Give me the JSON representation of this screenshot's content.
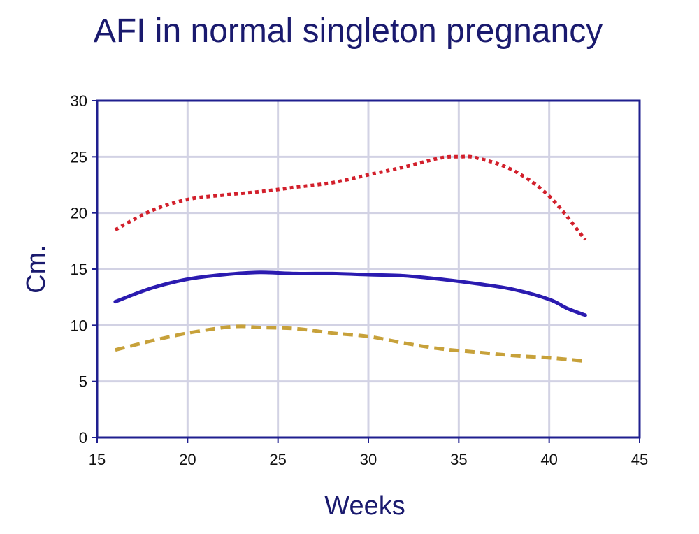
{
  "colors": {
    "title": "#1a1a6e",
    "axis_label": "#1a1a6e",
    "frame": "#1f1f8f",
    "grid": "#d2d2e4",
    "tick": "#111111",
    "upper": "#d21f2b",
    "median": "#2b1bb0",
    "lower": "#c7a13a"
  },
  "chart_data": {
    "type": "line",
    "title": "AFI in normal singleton pregnancy",
    "xlabel": "Weeks",
    "ylabel": "Cm.",
    "xlim": [
      15,
      45
    ],
    "ylim": [
      0,
      30
    ],
    "xticks": [
      15,
      20,
      25,
      30,
      35,
      40,
      45
    ],
    "yticks": [
      0,
      5,
      10,
      15,
      20,
      25,
      30
    ],
    "grid": true,
    "legend": "none",
    "series": [
      {
        "style": "dotted",
        "color": "#d21f2b",
        "points": [
          [
            16,
            18.5
          ],
          [
            18,
            20.2
          ],
          [
            20,
            21.2
          ],
          [
            22,
            21.6
          ],
          [
            24,
            21.9
          ],
          [
            26,
            22.3
          ],
          [
            28,
            22.7
          ],
          [
            30,
            23.4
          ],
          [
            32,
            24.1
          ],
          [
            34,
            24.9
          ],
          [
            35,
            25.0
          ],
          [
            36,
            24.9
          ],
          [
            38,
            23.8
          ],
          [
            40,
            21.5
          ],
          [
            42,
            17.6
          ]
        ]
      },
      {
        "style": "solid",
        "color": "#2b1bb0",
        "points": [
          [
            16,
            12.1
          ],
          [
            18,
            13.3
          ],
          [
            20,
            14.1
          ],
          [
            22,
            14.5
          ],
          [
            24,
            14.7
          ],
          [
            26,
            14.6
          ],
          [
            28,
            14.6
          ],
          [
            30,
            14.5
          ],
          [
            32,
            14.4
          ],
          [
            34,
            14.1
          ],
          [
            36,
            13.7
          ],
          [
            38,
            13.2
          ],
          [
            40,
            12.3
          ],
          [
            41,
            11.5
          ],
          [
            42,
            10.9
          ]
        ]
      },
      {
        "style": "dashed",
        "color": "#c7a13a",
        "points": [
          [
            16,
            7.8
          ],
          [
            18,
            8.6
          ],
          [
            20,
            9.3
          ],
          [
            22,
            9.8
          ],
          [
            23,
            9.9
          ],
          [
            24,
            9.8
          ],
          [
            26,
            9.7
          ],
          [
            28,
            9.3
          ],
          [
            30,
            9.0
          ],
          [
            32,
            8.4
          ],
          [
            34,
            7.9
          ],
          [
            36,
            7.6
          ],
          [
            38,
            7.3
          ],
          [
            40,
            7.1
          ],
          [
            42,
            6.8
          ]
        ]
      }
    ]
  }
}
